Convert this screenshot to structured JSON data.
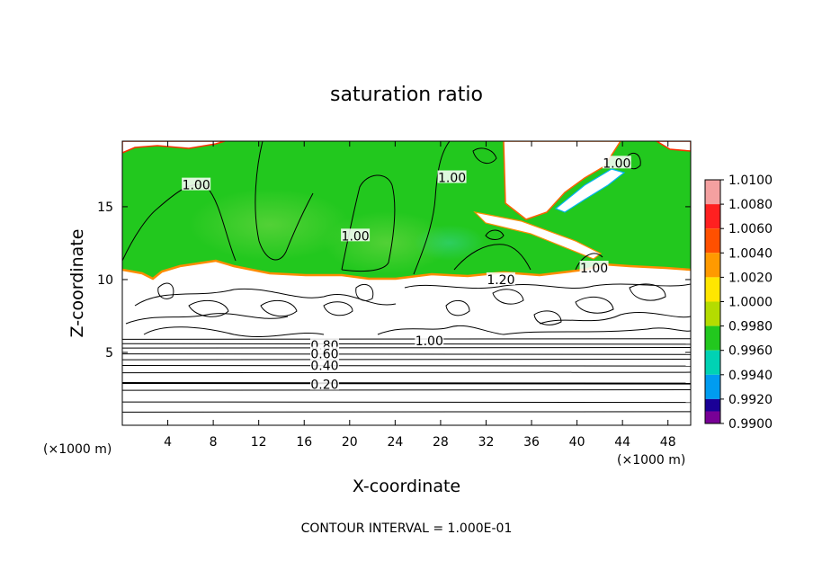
{
  "chart_data": {
    "type": "heatmap",
    "title": "saturation ratio",
    "xlabel": "X-coordinate",
    "ylabel": "Z-coordinate",
    "x_unit_left": "(×1000 m)",
    "x_unit_right": "(×1000 m)",
    "xlim": [
      0,
      50
    ],
    "ylim": [
      0,
      19.5
    ],
    "x_ticks": [
      4,
      8,
      12,
      16,
      20,
      24,
      28,
      32,
      36,
      40,
      44,
      48
    ],
    "y_ticks": [
      5,
      10,
      15
    ],
    "colorbar": {
      "levels": [
        "1.0100",
        "1.0080",
        "1.0060",
        "1.0040",
        "1.0020",
        "1.0000",
        "0.9980",
        "0.9960",
        "0.9940",
        "0.9920",
        "0.9900"
      ],
      "colors": [
        "#f4a0a0",
        "#ff2020",
        "#ff5000",
        "#ff9a00",
        "#ffe600",
        "#b4dc00",
        "#22c81e",
        "#00d2b4",
        "#009cf0",
        "#0028e6",
        "#1a0096",
        "#780096"
      ]
    },
    "contour_labels": [
      {
        "text": "1.00",
        "x": 6.5,
        "z": 16.5
      },
      {
        "text": "1.00",
        "x": 20.5,
        "z": 13.0
      },
      {
        "text": "1.00",
        "x": 29.0,
        "z": 17.0
      },
      {
        "text": "1.00",
        "x": 43.5,
        "z": 18.0
      },
      {
        "text": "1.00",
        "x": 41.5,
        "z": 10.8
      },
      {
        "text": "1.20",
        "x": 33.3,
        "z": 10.0
      },
      {
        "text": "1.00",
        "x": 27.0,
        "z": 5.8
      },
      {
        "text": "0.80",
        "x": 17.8,
        "z": 5.5
      },
      {
        "text": "0.60",
        "x": 17.8,
        "z": 4.9
      },
      {
        "text": "0.40",
        "x": 17.8,
        "z": 4.1
      },
      {
        "text": "0.20",
        "x": 17.8,
        "z": 2.8
      }
    ],
    "horizontal_contours_z": [
      0.9,
      1.6,
      2.4,
      2.9,
      3.6,
      4.1,
      4.5,
      4.9,
      5.3,
      5.6,
      5.9
    ],
    "footer": "CONTOUR INTERVAL = 1.000E-01"
  }
}
